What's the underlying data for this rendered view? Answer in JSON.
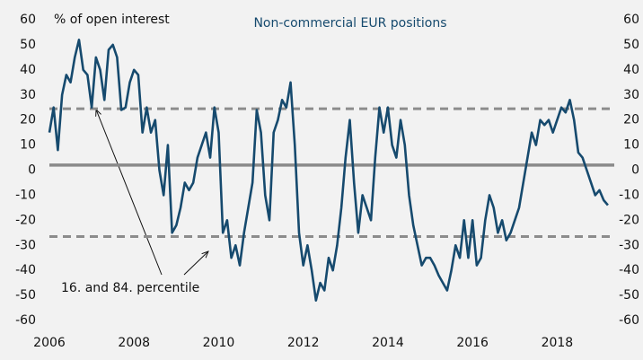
{
  "chart_data": {
    "type": "line",
    "title": "Non-commercial EUR positions",
    "ylabel": "% of open interest",
    "annotation": "16. and 84. percentile",
    "x": [
      2006.0,
      2006.1,
      2006.2,
      2006.3,
      2006.4,
      2006.5,
      2006.6,
      2006.7,
      2006.8,
      2006.9,
      2007.0,
      2007.1,
      2007.2,
      2007.3,
      2007.4,
      2007.5,
      2007.6,
      2007.7,
      2007.8,
      2007.9,
      2008.0,
      2008.1,
      2008.2,
      2008.3,
      2008.4,
      2008.5,
      2008.6,
      2008.7,
      2008.8,
      2008.9,
      2009.0,
      2009.1,
      2009.2,
      2009.3,
      2009.4,
      2009.5,
      2009.6,
      2009.7,
      2009.8,
      2009.9,
      2010.0,
      2010.1,
      2010.2,
      2010.3,
      2010.4,
      2010.5,
      2010.6,
      2010.7,
      2010.8,
      2010.9,
      2011.0,
      2011.1,
      2011.2,
      2011.3,
      2011.4,
      2011.5,
      2011.6,
      2011.7,
      2011.8,
      2011.9,
      2012.0,
      2012.1,
      2012.2,
      2012.3,
      2012.4,
      2012.5,
      2012.6,
      2012.7,
      2012.8,
      2012.9,
      2013.0,
      2013.1,
      2013.2,
      2013.3,
      2013.4,
      2013.5,
      2013.6,
      2013.7,
      2013.8,
      2013.9,
      2014.0,
      2014.1,
      2014.2,
      2014.3,
      2014.4,
      2014.5,
      2014.6,
      2014.7,
      2014.8,
      2014.9,
      2015.0,
      2015.1,
      2015.2,
      2015.3,
      2015.4,
      2015.5,
      2015.6,
      2015.7,
      2015.8,
      2015.9,
      2016.0,
      2016.1,
      2016.2,
      2016.3,
      2016.4,
      2016.5,
      2016.6,
      2016.7,
      2016.8,
      2016.9,
      2017.0,
      2017.1,
      2017.2,
      2017.3,
      2017.4,
      2017.5,
      2017.6,
      2017.7,
      2017.8,
      2017.9,
      2018.0,
      2018.1,
      2018.2,
      2018.3,
      2018.4,
      2018.5,
      2018.6,
      2018.7,
      2018.8,
      2018.9,
      2019.0,
      2019.1,
      2019.2
    ],
    "series": [
      {
        "name": "Non-commercial EUR positions",
        "color": "#164a6e",
        "values": [
          15,
          25,
          8,
          30,
          38,
          35,
          45,
          52,
          40,
          38,
          25,
          45,
          40,
          28,
          48,
          50,
          45,
          24,
          25,
          35,
          40,
          38,
          15,
          25,
          15,
          20,
          0,
          -10,
          10,
          -25,
          -22,
          -15,
          -5,
          -8,
          -5,
          5,
          10,
          15,
          5,
          25,
          15,
          -25,
          -20,
          -35,
          -30,
          -38,
          -25,
          -15,
          -5,
          24,
          15,
          -10,
          -20,
          15,
          20,
          28,
          25,
          35,
          10,
          -25,
          -38,
          -30,
          -40,
          -52,
          -45,
          -48,
          -35,
          -40,
          -30,
          -15,
          5,
          20,
          -5,
          -25,
          -10,
          -15,
          -20,
          5,
          25,
          15,
          25,
          10,
          5,
          20,
          10,
          -10,
          -22,
          -30,
          -38,
          -35,
          -35,
          -38,
          -42,
          -45,
          -48,
          -40,
          -30,
          -35,
          -20,
          -35,
          -20,
          -38,
          -35,
          -20,
          -10,
          -15,
          -25,
          -20,
          -28,
          -25,
          -20,
          -15,
          -5,
          5,
          15,
          10,
          20,
          18,
          20,
          15,
          20,
          25,
          23,
          28,
          20,
          7,
          5,
          0,
          -5,
          -10,
          -8,
          -12,
          -14
        ]
      }
    ],
    "reference_lines": [
      {
        "value": 2,
        "style": "solid"
      },
      {
        "value": 24.5,
        "style": "dashed"
      },
      {
        "value": -26.5,
        "style": "dashed"
      }
    ],
    "xlim": [
      2006,
      2019.35
    ],
    "xticks": [
      2006,
      2008,
      2010,
      2012,
      2014,
      2016,
      2018
    ],
    "ylim": [
      -60,
      60
    ],
    "yticks": [
      -60,
      -50,
      -40,
      -30,
      -20,
      -10,
      0,
      10,
      20,
      30,
      40,
      50,
      60
    ],
    "y2lim": [
      -60,
      60
    ],
    "y2ticks": [
      -60,
      -50,
      -40,
      -30,
      -20,
      -10,
      0,
      10,
      20,
      30,
      40,
      50,
      60
    ],
    "grid": false
  }
}
